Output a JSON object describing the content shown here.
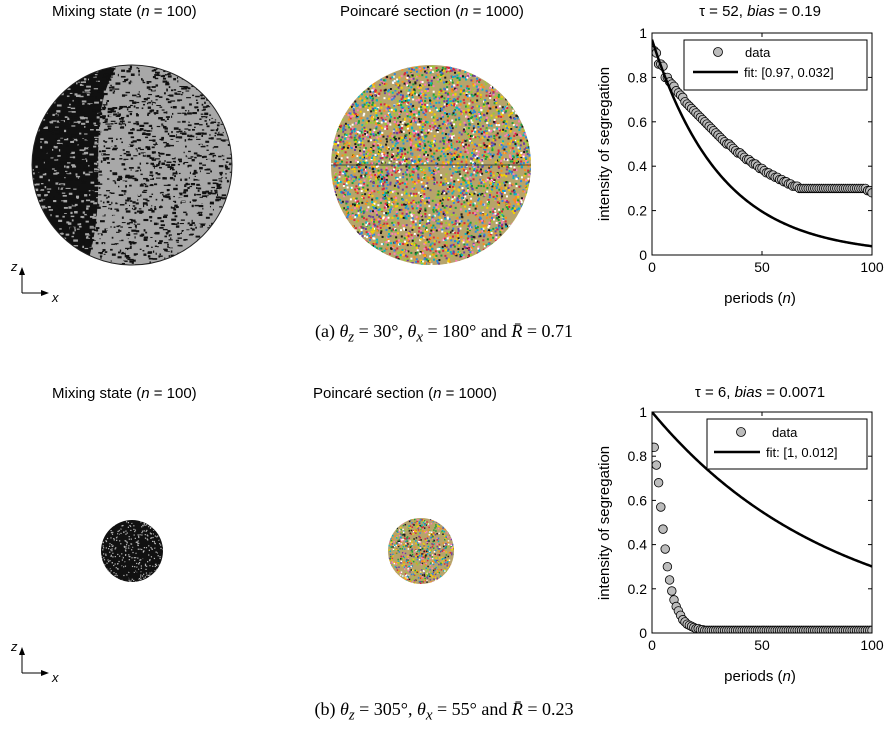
{
  "panels": [
    {
      "mixing_title": {
        "prefix": "Mixing state (",
        "var": "n",
        "suffix": " = 100)"
      },
      "poincare_title": {
        "prefix": "Poincaré section (",
        "var": "n",
        "suffix": " = 1000)"
      },
      "axes_labels": {
        "up": "z",
        "right": "x"
      },
      "caption": {
        "label": "(a) ",
        "text1": "θ",
        "sub1": "z",
        "text2": " = 30°, ",
        "text3": "θ",
        "sub3": "x",
        "text4": " = 180° and ",
        "text5": "R̄",
        "text6": " = 0.71"
      }
    },
    {
      "mixing_title": {
        "prefix": "Mixing state (",
        "var": "n",
        "suffix": " = 100)"
      },
      "poincare_title": {
        "prefix": "Poincaré section (",
        "var": "n",
        "suffix": " = 1000)"
      },
      "axes_labels": {
        "up": "z",
        "right": "x"
      },
      "caption": {
        "label": "(b) ",
        "text1": "θ",
        "sub1": "z",
        "text2": " = 305°, ",
        "text3": "θ",
        "sub3": "x",
        "text4": " = 55° and ",
        "text5": "R̄",
        "text6": " = 0.23"
      }
    }
  ],
  "colors": {
    "mix_dark": "#111111",
    "mix_light": "#a8a8a8",
    "marker_fill": "#bcbcbc",
    "line": "#000000"
  },
  "chart_data": [
    {
      "type": "scatter",
      "title_prefix": "τ = 52,  ",
      "title_bias": "bias",
      "title_suffix": " = 0.19",
      "xlabel": "periods (n)",
      "ylabel": "intensity of segregation",
      "xlim": [
        0,
        100
      ],
      "ylim": [
        0,
        1
      ],
      "xticks": [
        "0",
        "50",
        "100"
      ],
      "yticks": [
        "0",
        "0.2",
        "0.4",
        "0.6",
        "0.8",
        "1"
      ],
      "legend": {
        "position": "top-right",
        "entries": [
          "data",
          "fit: [0.97, 0.032]"
        ]
      },
      "fit": {
        "a": 0.97,
        "b": 0.032,
        "label": "fit: [0.97, 0.032]"
      },
      "series": [
        {
          "name": "data",
          "marker": "circle",
          "x": [
            0,
            1,
            2,
            3,
            4,
            5,
            6,
            7,
            8,
            9,
            10,
            11,
            12,
            13,
            14,
            15,
            16,
            17,
            18,
            19,
            20,
            21,
            22,
            23,
            24,
            25,
            26,
            27,
            28,
            29,
            30,
            31,
            32,
            33,
            34,
            35,
            36,
            37,
            38,
            39,
            40,
            41,
            42,
            43,
            44,
            45,
            46,
            47,
            48,
            49,
            50,
            51,
            52,
            53,
            54,
            55,
            56,
            57,
            58,
            59,
            60,
            61,
            62,
            63,
            64,
            65,
            66,
            67,
            68,
            69,
            70,
            71,
            72,
            73,
            74,
            75,
            76,
            77,
            78,
            79,
            80,
            81,
            82,
            83,
            84,
            85,
            86,
            87,
            88,
            89,
            90,
            91,
            92,
            93,
            94,
            95,
            96,
            97,
            98,
            99,
            100
          ],
          "y": [
            0.92,
            0.92,
            0.91,
            0.86,
            0.86,
            0.85,
            0.8,
            0.8,
            0.78,
            0.77,
            0.76,
            0.74,
            0.73,
            0.72,
            0.71,
            0.69,
            0.68,
            0.67,
            0.66,
            0.65,
            0.64,
            0.63,
            0.62,
            0.61,
            0.6,
            0.59,
            0.58,
            0.57,
            0.56,
            0.55,
            0.54,
            0.53,
            0.52,
            0.51,
            0.5,
            0.5,
            0.49,
            0.48,
            0.47,
            0.46,
            0.46,
            0.45,
            0.44,
            0.43,
            0.43,
            0.42,
            0.41,
            0.41,
            0.4,
            0.39,
            0.39,
            0.38,
            0.37,
            0.37,
            0.36,
            0.36,
            0.35,
            0.35,
            0.34,
            0.34,
            0.33,
            0.33,
            0.32,
            0.32,
            0.31,
            0.31,
            0.31,
            0.3,
            0.3,
            0.3,
            0.3,
            0.3,
            0.3,
            0.3,
            0.3,
            0.3,
            0.3,
            0.3,
            0.3,
            0.3,
            0.3,
            0.3,
            0.3,
            0.3,
            0.3,
            0.3,
            0.3,
            0.3,
            0.3,
            0.3,
            0.3,
            0.3,
            0.3,
            0.3,
            0.3,
            0.3,
            0.3,
            0.3,
            0.29,
            0.29,
            0.28
          ]
        }
      ]
    },
    {
      "type": "scatter",
      "title_prefix": "τ = 6,  ",
      "title_bias": "bias",
      "title_suffix": " = 0.0071",
      "xlabel": "periods (n)",
      "ylabel": "intensity of segregation",
      "xlim": [
        0,
        100
      ],
      "ylim": [
        0,
        1
      ],
      "xticks": [
        "0",
        "50",
        "100"
      ],
      "yticks": [
        "0",
        "0.2",
        "0.4",
        "0.6",
        "0.8",
        "1"
      ],
      "legend": {
        "position": "top-right",
        "entries": [
          "data",
          "fit: [1, 0.012]"
        ]
      },
      "fit": {
        "a": 1,
        "b": 0.012,
        "label": "fit: [1, 0.012]"
      },
      "series": [
        {
          "name": "data",
          "marker": "circle",
          "x": [
            0,
            1,
            2,
            3,
            4,
            5,
            6,
            7,
            8,
            9,
            10,
            11,
            12,
            13,
            14,
            15,
            16,
            17,
            18,
            19,
            20,
            21,
            22,
            23,
            24,
            25,
            26,
            27,
            28,
            29,
            30,
            31,
            32,
            33,
            34,
            35,
            36,
            37,
            38,
            39,
            40,
            41,
            42,
            43,
            44,
            45,
            46,
            47,
            48,
            49,
            50,
            51,
            52,
            53,
            54,
            55,
            56,
            57,
            58,
            59,
            60,
            61,
            62,
            63,
            64,
            65,
            66,
            67,
            68,
            69,
            70,
            71,
            72,
            73,
            74,
            75,
            76,
            77,
            78,
            79,
            80,
            81,
            82,
            83,
            84,
            85,
            86,
            87,
            88,
            89,
            90,
            91,
            92,
            93,
            94,
            95,
            96,
            97,
            98,
            99,
            100
          ],
          "y": [
            0.84,
            0.84,
            0.76,
            0.68,
            0.57,
            0.47,
            0.38,
            0.3,
            0.24,
            0.19,
            0.15,
            0.12,
            0.1,
            0.08,
            0.06,
            0.05,
            0.04,
            0.035,
            0.03,
            0.025,
            0.02,
            0.02,
            0.015,
            0.015,
            0.012,
            0.012,
            0.012,
            0.012,
            0.012,
            0.012,
            0.012,
            0.012,
            0.012,
            0.012,
            0.012,
            0.012,
            0.012,
            0.012,
            0.012,
            0.012,
            0.012,
            0.012,
            0.012,
            0.012,
            0.012,
            0.012,
            0.012,
            0.012,
            0.012,
            0.012,
            0.012,
            0.012,
            0.012,
            0.012,
            0.012,
            0.012,
            0.012,
            0.012,
            0.012,
            0.012,
            0.012,
            0.012,
            0.012,
            0.012,
            0.012,
            0.012,
            0.012,
            0.012,
            0.012,
            0.012,
            0.012,
            0.012,
            0.012,
            0.012,
            0.012,
            0.012,
            0.012,
            0.012,
            0.012,
            0.012,
            0.012,
            0.012,
            0.012,
            0.012,
            0.012,
            0.012,
            0.012,
            0.012,
            0.012,
            0.012,
            0.012,
            0.012,
            0.012,
            0.012,
            0.012,
            0.012,
            0.012,
            0.012,
            0.012,
            0.012,
            0.012
          ]
        }
      ]
    }
  ]
}
